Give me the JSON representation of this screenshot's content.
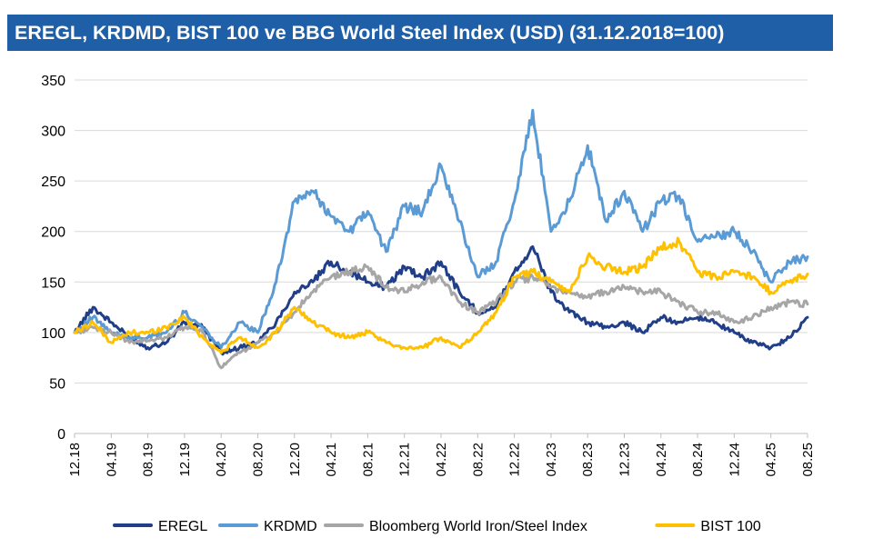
{
  "chart_data": {
    "type": "line",
    "title": "EREGL, KRDMD, BIST 100 ve BBG World Steel Index (USD) (31.12.2018=100)",
    "xlabel": "",
    "ylabel": "",
    "x_ticks": [
      "12.18",
      "04.19",
      "08.19",
      "12.19",
      "04.20",
      "08.20",
      "12.20",
      "04.21",
      "08.21",
      "12.21",
      "04.22",
      "08.22",
      "12.22",
      "04.23",
      "08.23",
      "12.23",
      "04.24",
      "08.24",
      "12.24",
      "04.25",
      "08.25"
    ],
    "ylim": [
      0,
      350
    ],
    "y_ticks": [
      0,
      50,
      100,
      150,
      200,
      250,
      300,
      350
    ],
    "grid": "horizontal",
    "legend_position": "bottom",
    "series": [
      {
        "name": "EREGL",
        "color": "#203f88",
        "x": [
          "12.18",
          "02.19",
          "04.19",
          "06.19",
          "08.19",
          "10.19",
          "12.19",
          "02.20",
          "04.20",
          "06.20",
          "08.20",
          "10.20",
          "12.20",
          "02.21",
          "04.21",
          "06.21",
          "08.21",
          "10.21",
          "12.21",
          "02.22",
          "04.22",
          "06.22",
          "08.22",
          "10.22",
          "12.22",
          "02.23",
          "04.23",
          "06.23",
          "08.23",
          "10.23",
          "12.23",
          "02.24",
          "04.24",
          "06.24",
          "08.24",
          "10.24",
          "12.24",
          "02.25",
          "04.25",
          "06.25",
          "08.25"
        ],
        "values": [
          100,
          125,
          110,
          95,
          85,
          90,
          110,
          105,
          80,
          85,
          90,
          110,
          140,
          150,
          170,
          160,
          150,
          145,
          165,
          155,
          170,
          140,
          120,
          125,
          160,
          185,
          140,
          120,
          110,
          105,
          110,
          100,
          115,
          110,
          115,
          110,
          100,
          90,
          85,
          95,
          115
        ]
      },
      {
        "name": "KRDMD",
        "color": "#5b9bd5",
        "x": [
          "12.18",
          "02.19",
          "04.19",
          "06.19",
          "08.19",
          "10.19",
          "12.19",
          "02.20",
          "04.20",
          "06.20",
          "08.20",
          "10.20",
          "12.20",
          "02.21",
          "04.21",
          "06.21",
          "08.21",
          "10.21",
          "12.21",
          "02.22",
          "04.22",
          "06.22",
          "08.22",
          "10.22",
          "12.22",
          "02.23",
          "04.23",
          "06.23",
          "08.23",
          "10.23",
          "12.23",
          "02.24",
          "04.24",
          "06.24",
          "08.24",
          "10.24",
          "12.24",
          "02.25",
          "04.25",
          "06.25",
          "08.25"
        ],
        "values": [
          100,
          115,
          100,
          95,
          95,
          100,
          120,
          105,
          85,
          110,
          100,
          150,
          230,
          240,
          215,
          200,
          220,
          180,
          225,
          220,
          265,
          210,
          155,
          170,
          230,
          320,
          200,
          230,
          285,
          210,
          240,
          200,
          230,
          235,
          190,
          195,
          200,
          180,
          150,
          170,
          175
        ]
      },
      {
        "name": "Bloomberg World Iron/Steel Index",
        "color": "#a6a6a6",
        "x": [
          "12.18",
          "02.19",
          "04.19",
          "06.19",
          "08.19",
          "10.19",
          "12.19",
          "02.20",
          "04.20",
          "06.20",
          "08.20",
          "10.20",
          "12.20",
          "02.21",
          "04.21",
          "06.21",
          "08.21",
          "10.21",
          "12.21",
          "02.22",
          "04.22",
          "06.22",
          "08.22",
          "10.22",
          "12.22",
          "02.23",
          "04.23",
          "06.23",
          "08.23",
          "10.23",
          "12.23",
          "02.24",
          "04.24",
          "06.24",
          "08.24",
          "10.24",
          "12.24",
          "02.25",
          "04.25",
          "06.25",
          "08.25"
        ],
        "values": [
          100,
          105,
          100,
          90,
          92,
          95,
          105,
          100,
          65,
          80,
          90,
          100,
          120,
          140,
          155,
          160,
          165,
          145,
          140,
          150,
          155,
          130,
          120,
          130,
          150,
          155,
          145,
          140,
          135,
          140,
          145,
          140,
          140,
          130,
          120,
          120,
          110,
          115,
          125,
          130,
          128
        ]
      },
      {
        "name": "BIST 100",
        "color": "#ffc000",
        "x": [
          "12.18",
          "02.19",
          "04.19",
          "06.19",
          "08.19",
          "10.19",
          "12.19",
          "02.20",
          "04.20",
          "06.20",
          "08.20",
          "10.20",
          "12.20",
          "02.21",
          "04.21",
          "06.21",
          "08.21",
          "10.21",
          "12.21",
          "02.22",
          "04.22",
          "06.22",
          "08.22",
          "10.22",
          "12.22",
          "02.23",
          "04.23",
          "06.23",
          "08.23",
          "10.23",
          "12.23",
          "02.24",
          "04.24",
          "06.24",
          "08.24",
          "10.24",
          "12.24",
          "02.25",
          "04.25",
          "06.25",
          "08.25"
        ],
        "values": [
          100,
          110,
          90,
          100,
          100,
          105,
          115,
          95,
          80,
          95,
          85,
          100,
          125,
          110,
          100,
          95,
          100,
          90,
          85,
          85,
          95,
          85,
          100,
          120,
          155,
          160,
          150,
          140,
          175,
          165,
          160,
          165,
          185,
          190,
          160,
          155,
          160,
          155,
          140,
          150,
          158
        ]
      }
    ]
  }
}
